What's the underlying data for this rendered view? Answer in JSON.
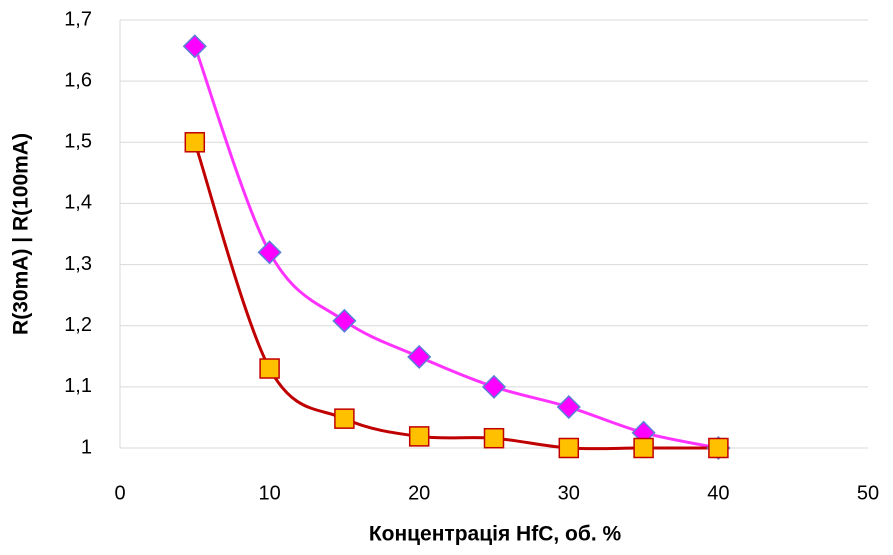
{
  "chart_data": {
    "type": "scatter",
    "x_label": "Концентрація HfC, об. %",
    "y_label": "R(30mA) | R(100mA)",
    "x": [
      5,
      10,
      15,
      20,
      25,
      30,
      35,
      40
    ],
    "series": [
      {
        "color": "#ff33ff",
        "marker": "diamond",
        "marker_fill": "#ff00ff",
        "marker_stroke": "#5b7fd8",
        "values": [
          1.657,
          1.32,
          1.208,
          1.149,
          1.1,
          1.067,
          1.025,
          1.0
        ]
      },
      {
        "color": "#c00000",
        "marker": "square",
        "marker_fill": "#ffc000",
        "marker_stroke": "#c00000",
        "values": [
          1.5,
          1.13,
          1.048,
          1.019,
          1.016,
          1.0,
          1.0,
          1.0
        ]
      }
    ],
    "xlim": [
      0,
      50
    ],
    "xticks": [
      0,
      10,
      20,
      30,
      40,
      50
    ],
    "ylim": [
      1,
      1.7
    ],
    "yticks": [
      1,
      {
        "value": 1.1,
        "label": "1,1"
      },
      {
        "value": 1.2,
        "label": "1,2"
      },
      {
        "value": 1.3,
        "label": "1,3"
      },
      {
        "value": 1.4,
        "label": "1,4"
      },
      {
        "value": 1.5,
        "label": "1,5"
      },
      {
        "value": 1.6,
        "label": "1,6"
      },
      {
        "value": 1.7,
        "label": "1,7"
      }
    ],
    "grid": true,
    "smooth": true
  }
}
